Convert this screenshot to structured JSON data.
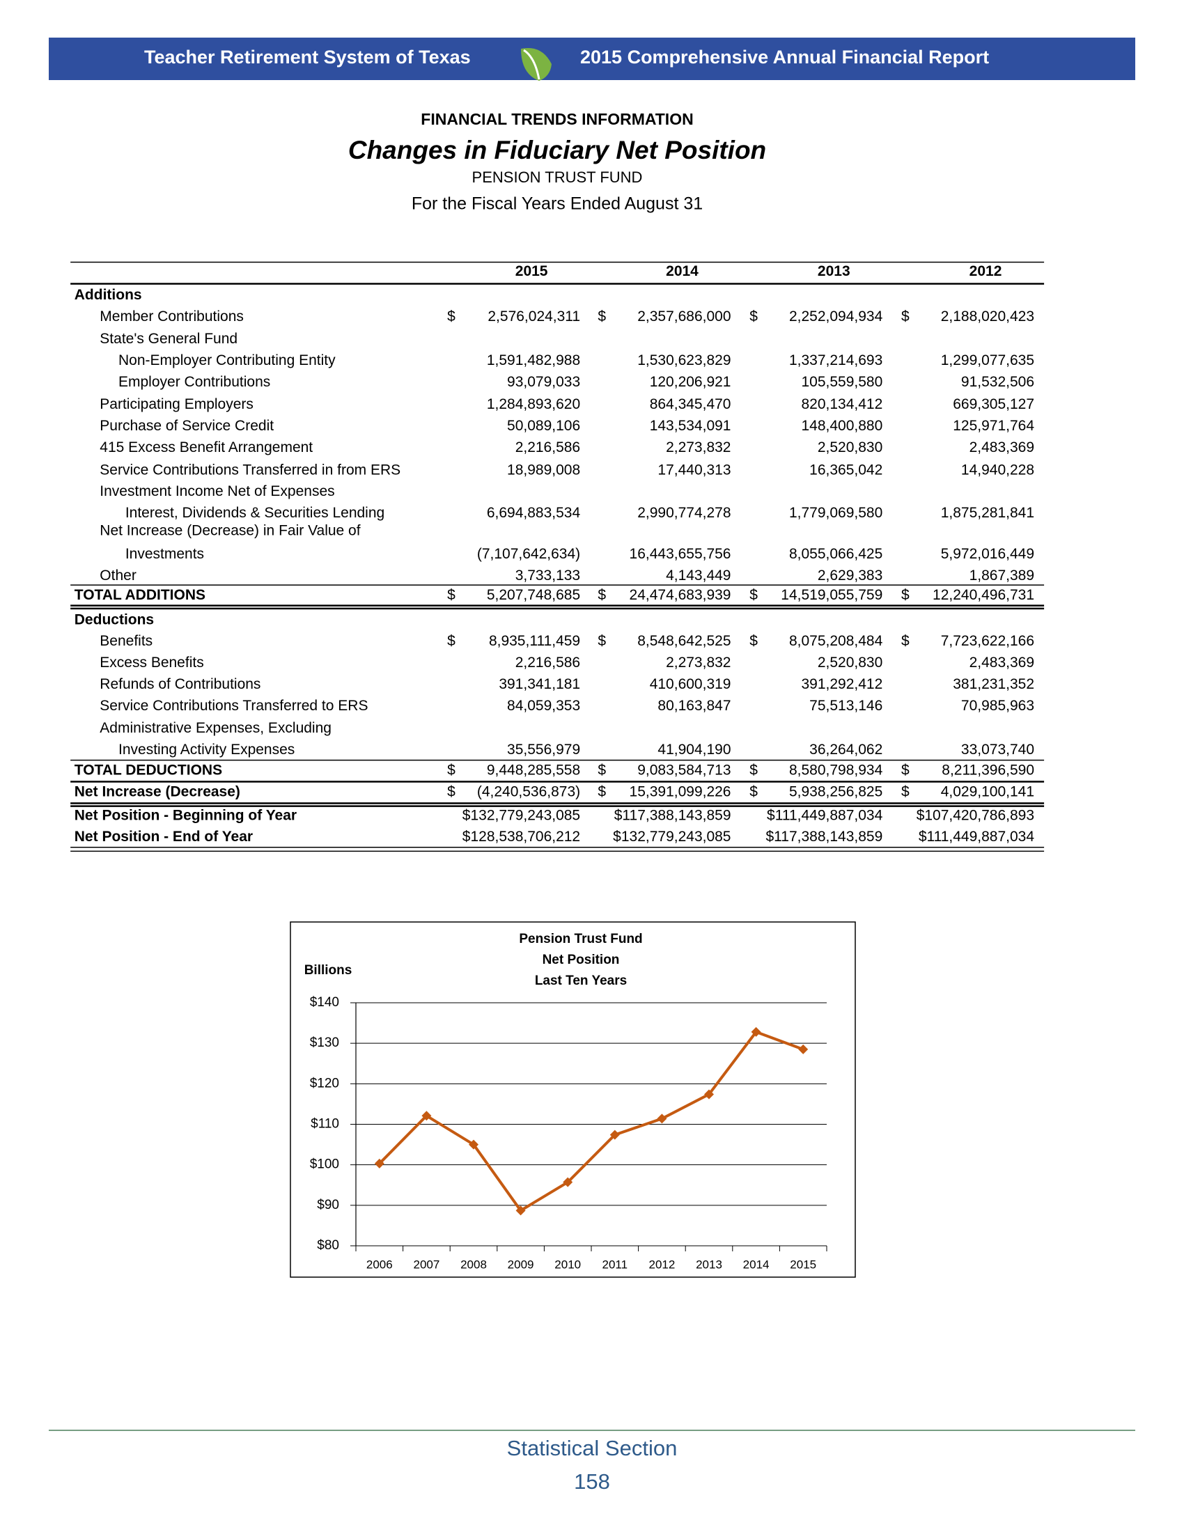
{
  "header": {
    "left": "Teacher Retirement System of Texas",
    "right": "2015 Comprehensive Annual Financial Report"
  },
  "heading": {
    "section": "FINANCIAL TRENDS INFORMATION",
    "title": "Changes in Fiduciary Net Position",
    "fund": "PENSION TRUST FUND",
    "period": "For the Fiscal Years Ended August 31"
  },
  "table": {
    "columns": [
      "2015",
      "2014",
      "2013",
      "2012"
    ],
    "rows": [
      {
        "label": "Additions"
      },
      {
        "label": "Member Contributions",
        "values": [
          "$ 2,576,024,311",
          "$ 2,357,686,000",
          "$ 2,252,094,934",
          "$ 2,188,020,423"
        ]
      },
      {
        "label": "State's General Fund"
      },
      {
        "label": "Non-Employer Contributing Entity",
        "values": [
          "1,591,482,988",
          "1,530,623,829",
          "1,337,214,693",
          "1,299,077,635"
        ]
      },
      {
        "label": "Employer Contributions",
        "values": [
          "93,079,033",
          "120,206,921",
          "105,559,580",
          "91,532,506"
        ]
      },
      {
        "label": "Participating Employers",
        "values": [
          "1,284,893,620",
          "864,345,470",
          "820,134,412",
          "669,305,127"
        ]
      },
      {
        "label": "Purchase of Service Credit",
        "values": [
          "50,089,106",
          "143,534,091",
          "148,400,880",
          "125,971,764"
        ]
      },
      {
        "label": "415 Excess Benefit Arrangement",
        "values": [
          "2,216,586",
          "2,273,832",
          "2,520,830",
          "2,483,369"
        ]
      },
      {
        "label": "Service Contributions Transferred in from ERS",
        "values": [
          "18,989,008",
          "17,440,313",
          "16,365,042",
          "14,940,228"
        ]
      },
      {
        "label": "Investment Income Net of Expenses"
      },
      {
        "label": "Interest, Dividends & Securities Lending",
        "values": [
          "6,694,883,534",
          "2,990,774,278",
          "1,779,069,580",
          "1,875,281,841"
        ]
      },
      {
        "label": "Net Increase (Decrease) in Fair Value of"
      },
      {
        "label": "Investments",
        "values": [
          "(7,107,642,634)",
          "16,443,655,756",
          "8,055,066,425",
          "5,972,016,449"
        ]
      },
      {
        "label": "Other",
        "values": [
          "3,733,133",
          "4,143,449",
          "2,629,383",
          "1,867,389"
        ]
      },
      {
        "label": "TOTAL ADDITIONS",
        "values": [
          "$ 5,207,748,685",
          "$ 24,474,683,939",
          "$ 14,519,055,759",
          "$ 12,240,496,731"
        ]
      },
      {
        "label": "Deductions"
      },
      {
        "label": "Benefits",
        "values": [
          "$ 8,935,111,459",
          "$ 8,548,642,525",
          "$ 8,075,208,484",
          "$ 7,723,622,166"
        ]
      },
      {
        "label": "Excess Benefits",
        "values": [
          "2,216,586",
          "2,273,832",
          "2,520,830",
          "2,483,369"
        ]
      },
      {
        "label": "Refunds of Contributions",
        "values": [
          "391,341,181",
          "410,600,319",
          "391,292,412",
          "381,231,352"
        ]
      },
      {
        "label": "Service Contributions Transferred to ERS",
        "values": [
          "84,059,353",
          "80,163,847",
          "75,513,146",
          "70,985,963"
        ]
      },
      {
        "label": "Administrative Expenses, Excluding"
      },
      {
        "label": "Investing Activity Expenses",
        "values": [
          "35,556,979",
          "41,904,190",
          "36,264,062",
          "33,073,740"
        ]
      },
      {
        "label": "TOTAL DEDUCTIONS",
        "values": [
          "$ 9,448,285,558",
          "$ 9,083,584,713",
          "$ 8,580,798,934",
          "$ 8,211,396,590"
        ]
      },
      {
        "label": "Net Increase (Decrease)",
        "values": [
          "$ (4,240,536,873)",
          "$ 15,391,099,226",
          "$ 5,938,256,825",
          "$ 4,029,100,141"
        ]
      },
      {
        "label": "Net Position - Beginning of Year",
        "values": [
          "$132,779,243,085",
          "$117,388,143,859",
          "$111,449,887,034",
          "$107,420,786,893"
        ]
      },
      {
        "label": "Net Position - End of Year",
        "values": [
          "$128,538,706,212",
          "$132,779,243,085",
          "$117,388,143,859",
          "$111,449,887,034"
        ]
      }
    ]
  },
  "chart_data": {
    "type": "line",
    "title": [
      "Pension Trust Fund",
      "Net Position",
      "Last Ten Years"
    ],
    "y_label": "Billions",
    "categories": [
      "2006",
      "2007",
      "2008",
      "2009",
      "2010",
      "2011",
      "2012",
      "2013",
      "2014",
      "2015"
    ],
    "values": [
      100.3,
      112.1,
      105.0,
      88.7,
      95.7,
      107.4,
      111.4,
      117.4,
      132.8,
      128.5
    ],
    "color": "#c55a11",
    "ylim": [
      80,
      140
    ],
    "yticks": [
      {
        "value": 80,
        "label": "$80"
      },
      {
        "value": 90,
        "label": "$90"
      },
      {
        "value": 100,
        "label": "$100"
      },
      {
        "value": 110,
        "label": "$110"
      },
      {
        "value": 120,
        "label": "$120"
      },
      {
        "value": 130,
        "label": "$130"
      },
      {
        "value": 140,
        "label": "$140"
      }
    ],
    "grid": true
  },
  "footer": {
    "section": "Statistical Section",
    "page": 158
  }
}
